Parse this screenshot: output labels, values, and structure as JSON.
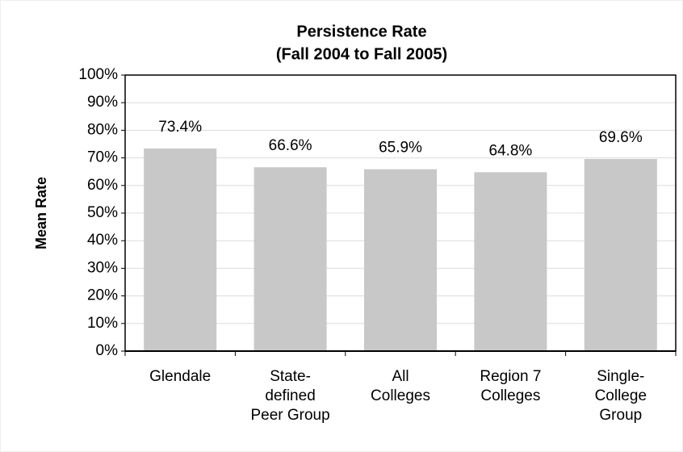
{
  "chart_data": {
    "type": "bar",
    "title": "Persistence Rate",
    "subtitle": "(Fall 2004 to Fall 2005)",
    "y_label": "Mean Rate",
    "categories": [
      "Glendale",
      "State-\ndefined\nPeer Group",
      "All\nColleges",
      "Region 7\nColleges",
      "Single-\nCollege\nGroup"
    ],
    "values": [
      73.4,
      66.6,
      65.9,
      64.8,
      69.6
    ],
    "value_labels": [
      "73.4%",
      "66.6%",
      "65.9%",
      "64.8%",
      "69.6%"
    ],
    "color": "#c8c8c8",
    "ylim": [
      0,
      100
    ],
    "yticks": [
      {
        "value": 0,
        "label": "0%"
      },
      {
        "value": 10,
        "label": "10%"
      },
      {
        "value": 20,
        "label": "20%"
      },
      {
        "value": 30,
        "label": "30%"
      },
      {
        "value": 40,
        "label": "40%"
      },
      {
        "value": 50,
        "label": "50%"
      },
      {
        "value": 60,
        "label": "60%"
      },
      {
        "value": 70,
        "label": "70%"
      },
      {
        "value": 80,
        "label": "80%"
      },
      {
        "value": 90,
        "label": "90%"
      },
      {
        "value": 100,
        "label": "100%"
      }
    ],
    "grid": true
  }
}
